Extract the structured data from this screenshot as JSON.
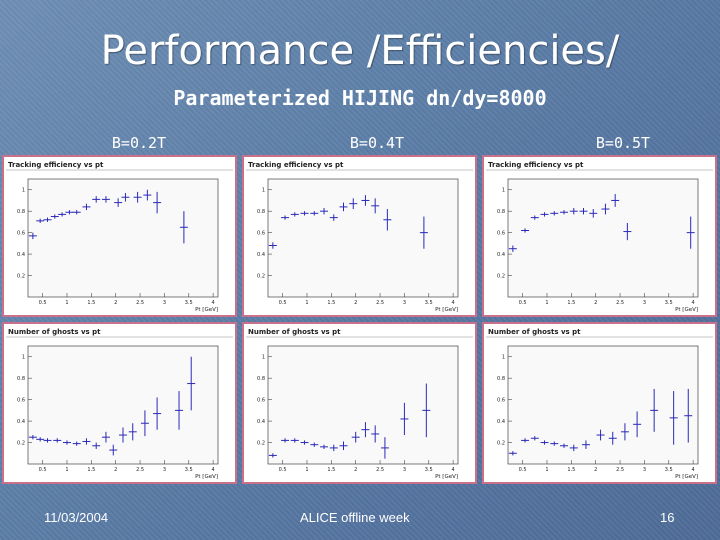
{
  "slide": {
    "title": "Performance /Efficiencies/",
    "subtitle": "Parameterized HIJING dn/dy=8000",
    "field_labels": [
      "B=0.2T",
      "B=0.4T",
      "B=0.5T"
    ],
    "footer_date": "11/03/2004",
    "footer_center": "ALICE offline week",
    "page_number": "16",
    "colors": {
      "background": "#5f80aa",
      "panel_border": "#c9708a",
      "plot_line": "#2a2ab8",
      "text": "#ffffff"
    }
  },
  "chart_data": [
    {
      "type": "scatter",
      "panel": "efficiency",
      "field": "B=0.2T",
      "title": "Tracking efficiency vs pt",
      "xlabel": "Pt [GeV]",
      "xlim": [
        0.2,
        4.1
      ],
      "ylim": [
        0,
        1.1
      ],
      "xticks": [
        "0.5",
        "1",
        "1.5",
        "2",
        "2.5",
        "3",
        "3.5",
        "4"
      ],
      "yticks": [
        "0.2",
        "0.4",
        "0.6",
        "0.8",
        "1"
      ],
      "points": [
        [
          0.3,
          0.57,
          0.03
        ],
        [
          0.45,
          0.71,
          0.02
        ],
        [
          0.6,
          0.72,
          0.02
        ],
        [
          0.75,
          0.75,
          0.02
        ],
        [
          0.9,
          0.77,
          0.02
        ],
        [
          1.05,
          0.79,
          0.02
        ],
        [
          1.2,
          0.79,
          0.02
        ],
        [
          1.4,
          0.84,
          0.03
        ],
        [
          1.6,
          0.91,
          0.03
        ],
        [
          1.8,
          0.91,
          0.03
        ],
        [
          2.05,
          0.88,
          0.04
        ],
        [
          2.2,
          0.93,
          0.04
        ],
        [
          2.45,
          0.93,
          0.05
        ],
        [
          2.65,
          0.95,
          0.05
        ],
        [
          2.85,
          0.88,
          0.1
        ],
        [
          3.4,
          0.65,
          0.15
        ]
      ]
    },
    {
      "type": "scatter",
      "panel": "efficiency",
      "field": "B=0.4T",
      "title": "Tracking efficiency vs pt",
      "xlabel": "Pt [GeV]",
      "xlim": [
        0.2,
        4.1
      ],
      "ylim": [
        0,
        1.1
      ],
      "xticks": [
        "0.5",
        "1",
        "1.5",
        "2",
        "2.5",
        "3",
        "3.5",
        "4"
      ],
      "yticks": [
        "0.2",
        "0.4",
        "0.6",
        "0.8",
        "1"
      ],
      "points": [
        [
          0.3,
          0.48,
          0.03
        ],
        [
          0.55,
          0.74,
          0.02
        ],
        [
          0.75,
          0.77,
          0.02
        ],
        [
          0.95,
          0.78,
          0.02
        ],
        [
          1.15,
          0.78,
          0.02
        ],
        [
          1.35,
          0.8,
          0.03
        ],
        [
          1.55,
          0.74,
          0.03
        ],
        [
          1.75,
          0.84,
          0.04
        ],
        [
          1.95,
          0.87,
          0.05
        ],
        [
          2.2,
          0.9,
          0.05
        ],
        [
          2.4,
          0.85,
          0.07
        ],
        [
          2.65,
          0.72,
          0.1
        ],
        [
          3.4,
          0.6,
          0.15
        ]
      ]
    },
    {
      "type": "scatter",
      "panel": "efficiency",
      "field": "B=0.5T",
      "title": "Tracking efficiency vs pt",
      "xlabel": "Pt [GeV]",
      "xlim": [
        0.2,
        4.1
      ],
      "ylim": [
        0,
        1.1
      ],
      "xticks": [
        "0.5",
        "1",
        "1.5",
        "2",
        "2.5",
        "3",
        "3.5",
        "4"
      ],
      "yticks": [
        "0.2",
        "0.4",
        "0.6",
        "0.8",
        "1"
      ],
      "points": [
        [
          0.3,
          0.45,
          0.03
        ],
        [
          0.55,
          0.62,
          0.02
        ],
        [
          0.75,
          0.74,
          0.02
        ],
        [
          0.95,
          0.77,
          0.02
        ],
        [
          1.15,
          0.78,
          0.02
        ],
        [
          1.35,
          0.79,
          0.02
        ],
        [
          1.55,
          0.8,
          0.03
        ],
        [
          1.75,
          0.8,
          0.03
        ],
        [
          1.95,
          0.78,
          0.04
        ],
        [
          2.2,
          0.82,
          0.05
        ],
        [
          2.4,
          0.9,
          0.06
        ],
        [
          2.65,
          0.61,
          0.08
        ],
        [
          3.95,
          0.6,
          0.15
        ]
      ]
    },
    {
      "type": "scatter",
      "panel": "ghosts",
      "field": "B=0.2T",
      "title": "Number of ghosts vs pt",
      "xlabel": "Pt [GeV]",
      "xlim": [
        0.2,
        4.1
      ],
      "ylim": [
        0,
        1.1
      ],
      "xticks": [
        "0.5",
        "1",
        "1.5",
        "2",
        "2.5",
        "3",
        "3.5",
        "4"
      ],
      "yticks": [
        "0.2",
        "0.4",
        "0.6",
        "0.8",
        "1"
      ],
      "points": [
        [
          0.3,
          0.25,
          0.02
        ],
        [
          0.45,
          0.23,
          0.02
        ],
        [
          0.6,
          0.22,
          0.02
        ],
        [
          0.8,
          0.22,
          0.02
        ],
        [
          1.0,
          0.2,
          0.02
        ],
        [
          1.2,
          0.19,
          0.02
        ],
        [
          1.4,
          0.21,
          0.03
        ],
        [
          1.6,
          0.17,
          0.03
        ],
        [
          1.8,
          0.25,
          0.05
        ],
        [
          1.95,
          0.13,
          0.05
        ],
        [
          2.15,
          0.27,
          0.07
        ],
        [
          2.35,
          0.3,
          0.08
        ],
        [
          2.6,
          0.38,
          0.12
        ],
        [
          2.85,
          0.47,
          0.15
        ],
        [
          3.3,
          0.5,
          0.18
        ],
        [
          3.55,
          0.75,
          0.25
        ]
      ]
    },
    {
      "type": "scatter",
      "panel": "ghosts",
      "field": "B=0.4T",
      "title": "Number of ghosts vs pt",
      "xlabel": "Pt [GeV]",
      "xlim": [
        0.2,
        4.1
      ],
      "ylim": [
        0,
        1.1
      ],
      "xticks": [
        "0.5",
        "1",
        "1.5",
        "2",
        "2.5",
        "3",
        "3.5",
        "4"
      ],
      "yticks": [
        "0.2",
        "0.4",
        "0.6",
        "0.8",
        "1"
      ],
      "points": [
        [
          0.3,
          0.08,
          0.02
        ],
        [
          0.55,
          0.22,
          0.02
        ],
        [
          0.75,
          0.22,
          0.02
        ],
        [
          0.95,
          0.2,
          0.02
        ],
        [
          1.15,
          0.18,
          0.02
        ],
        [
          1.35,
          0.16,
          0.02
        ],
        [
          1.55,
          0.15,
          0.03
        ],
        [
          1.75,
          0.17,
          0.04
        ],
        [
          2.0,
          0.25,
          0.05
        ],
        [
          2.2,
          0.32,
          0.07
        ],
        [
          2.4,
          0.28,
          0.08
        ],
        [
          2.6,
          0.15,
          0.1
        ],
        [
          3.0,
          0.42,
          0.15
        ],
        [
          3.45,
          0.5,
          0.25
        ]
      ]
    },
    {
      "type": "scatter",
      "panel": "ghosts",
      "field": "B=0.5T",
      "title": "Number of ghosts vs pt",
      "xlabel": "Pt [GeV]",
      "xlim": [
        0.2,
        4.1
      ],
      "ylim": [
        0,
        1.1
      ],
      "xticks": [
        "0.5",
        "1",
        "1.5",
        "2",
        "2.5",
        "3",
        "3.5",
        "4"
      ],
      "yticks": [
        "0.2",
        "0.4",
        "0.6",
        "0.8",
        "1"
      ],
      "points": [
        [
          0.3,
          0.1,
          0.02
        ],
        [
          0.55,
          0.22,
          0.02
        ],
        [
          0.75,
          0.24,
          0.02
        ],
        [
          0.95,
          0.2,
          0.02
        ],
        [
          1.15,
          0.19,
          0.02
        ],
        [
          1.35,
          0.17,
          0.02
        ],
        [
          1.55,
          0.15,
          0.03
        ],
        [
          1.8,
          0.18,
          0.04
        ],
        [
          2.1,
          0.27,
          0.05
        ],
        [
          2.35,
          0.24,
          0.06
        ],
        [
          2.6,
          0.3,
          0.08
        ],
        [
          2.85,
          0.37,
          0.12
        ],
        [
          3.2,
          0.5,
          0.2
        ],
        [
          3.6,
          0.43,
          0.25
        ],
        [
          3.9,
          0.45,
          0.25
        ]
      ]
    }
  ]
}
